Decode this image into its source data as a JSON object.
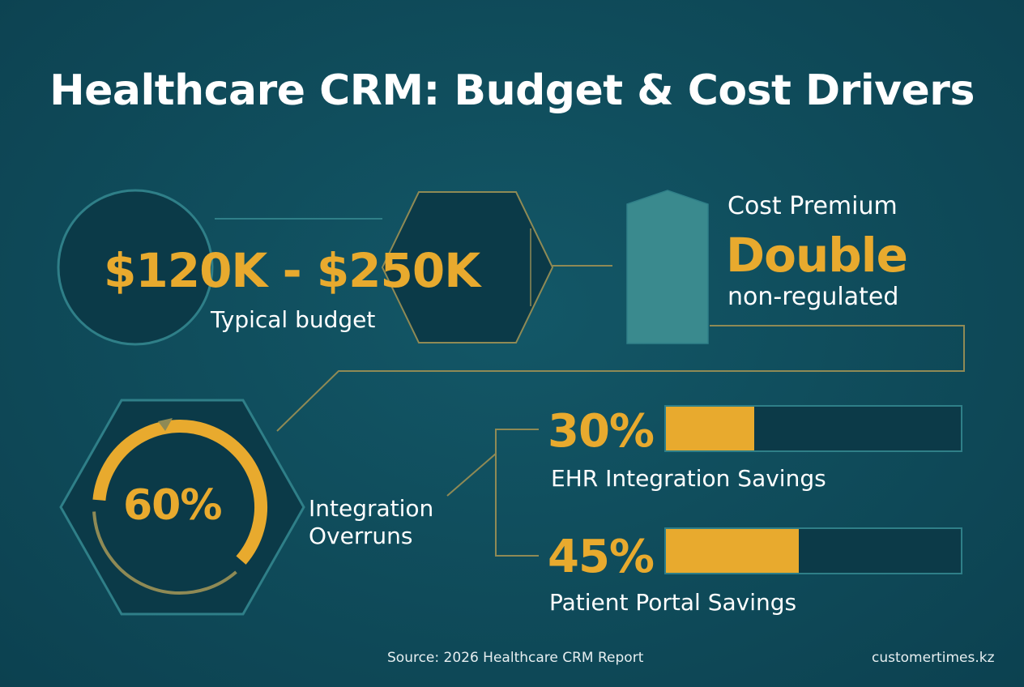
{
  "title": "Healthcare CRM: Budget & Cost Drivers",
  "budget": {
    "value": "$120K - $250K",
    "label": "Typical budget"
  },
  "premium": {
    "label": "Cost Premium",
    "value": "Double",
    "sublabel": "non-regulated"
  },
  "overruns": {
    "value": "60%",
    "label": "Integration Overruns",
    "fraction": 0.6
  },
  "savings": [
    {
      "value": "30%",
      "label": "EHR Integration Savings",
      "fraction": 0.3
    },
    {
      "value": "45%",
      "label": "Patient Portal Savings",
      "fraction": 0.45
    }
  ],
  "footer": {
    "source": "Source: 2026 Healthcare CRM Report",
    "site": "customertimes.kz"
  },
  "colors": {
    "background": "#0f4b5a",
    "accent": "#e8aa2e",
    "outline": "#2f7f88",
    "line": "#8f8a55",
    "text": "#ffffff"
  }
}
